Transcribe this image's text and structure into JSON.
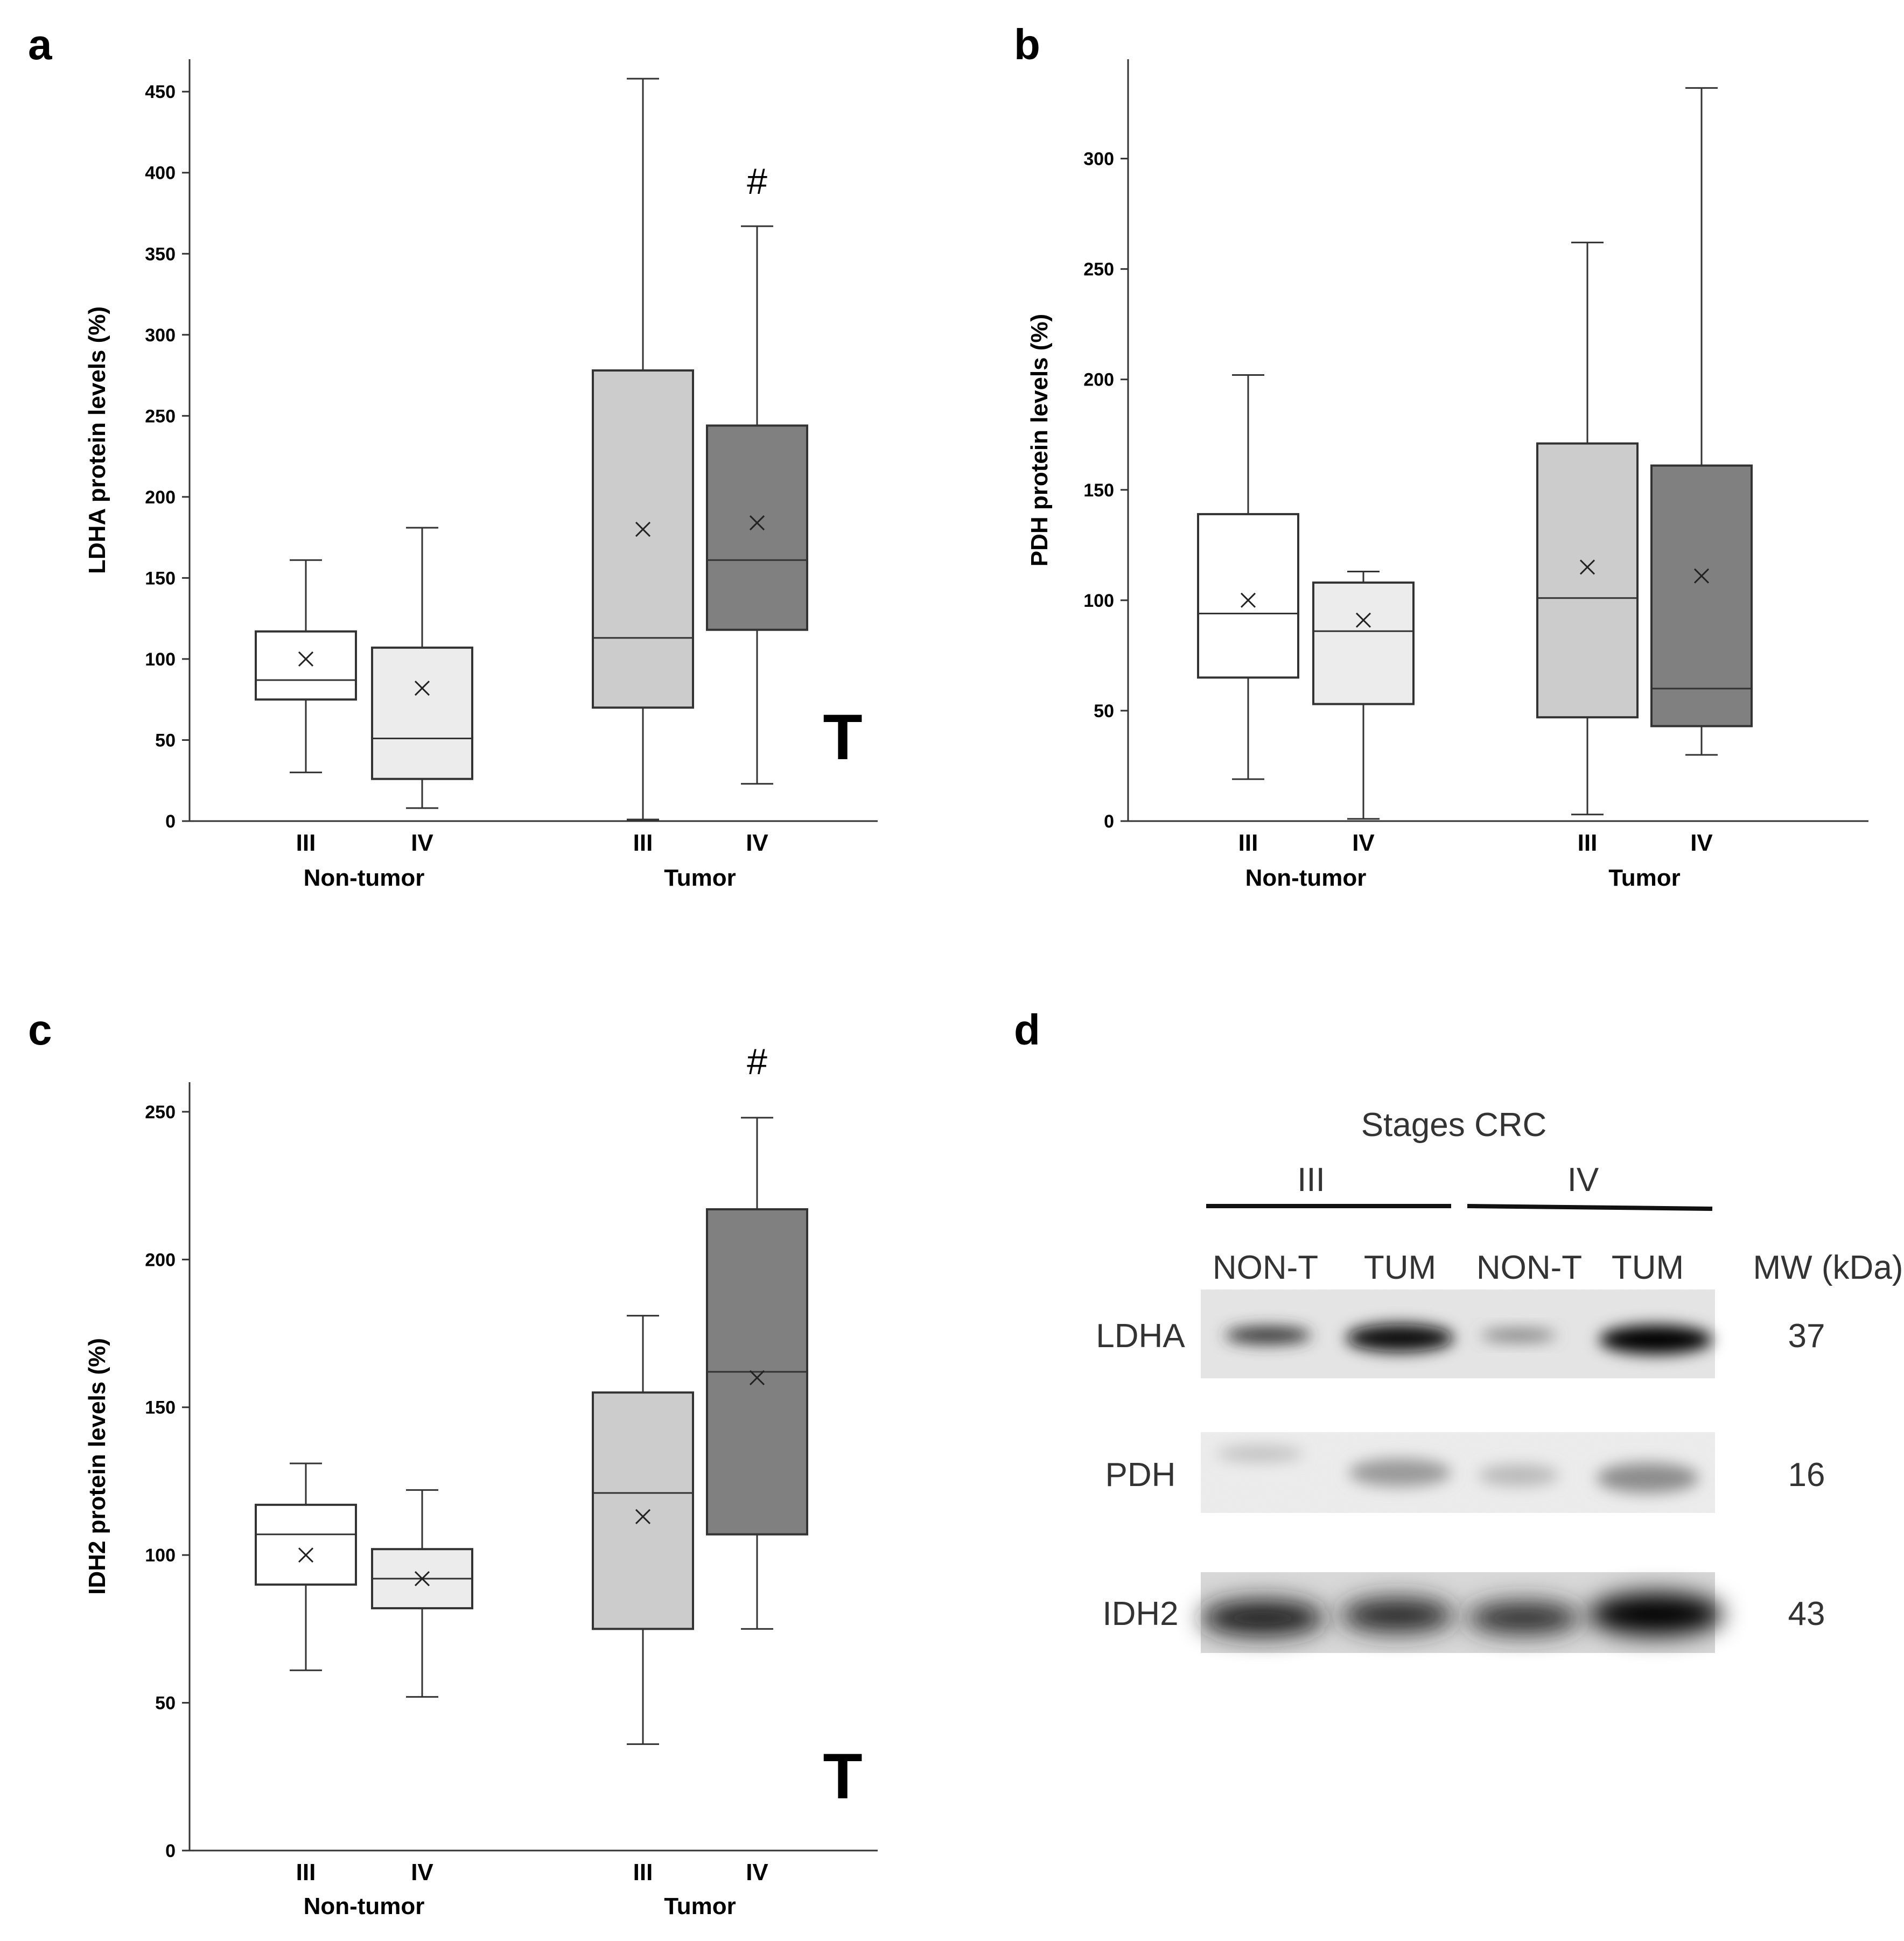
{
  "panels": {
    "a": "a",
    "b": "b",
    "c": "c",
    "d": "d"
  },
  "chart_data": [
    {
      "panel": "a",
      "type": "boxplot",
      "ylabel": "LDHA protein levels (%)",
      "ylim": [
        0,
        470
      ],
      "yticks": [
        0,
        50,
        100,
        150,
        200,
        250,
        300,
        350,
        400,
        450
      ],
      "groups": [
        "Non-tumor",
        "Tumor"
      ],
      "categories": [
        "III",
        "IV",
        "III",
        "IV"
      ],
      "boxes": [
        {
          "group": "Non-tumor",
          "stage": "III",
          "min": 30,
          "q1": 75,
          "median": 87,
          "q3": 117,
          "max": 161,
          "mean": 100,
          "color": "#ffffff"
        },
        {
          "group": "Non-tumor",
          "stage": "IV",
          "min": 8,
          "q1": 26,
          "median": 51,
          "q3": 107,
          "max": 181,
          "mean": 82,
          "color": "#ececec"
        },
        {
          "group": "Tumor",
          "stage": "III",
          "min": 1,
          "q1": 70,
          "median": 113,
          "q3": 278,
          "max": 458,
          "mean": 180,
          "color": "#cccccc"
        },
        {
          "group": "Tumor",
          "stage": "IV",
          "min": 23,
          "q1": 118,
          "median": 161,
          "q3": 244,
          "max": 367,
          "mean": 184,
          "color": "#808080"
        }
      ],
      "annotations": {
        "hash": "#",
        "hash_on": "Tumor IV",
        "T": "T"
      }
    },
    {
      "panel": "b",
      "type": "boxplot",
      "ylabel": "PDH protein levels (%)",
      "ylim": [
        0,
        345
      ],
      "yticks": [
        0,
        50,
        100,
        150,
        200,
        250,
        300
      ],
      "groups": [
        "Non-tumor",
        "Tumor"
      ],
      "categories": [
        "III",
        "IV",
        "III",
        "IV"
      ],
      "boxes": [
        {
          "group": "Non-tumor",
          "stage": "III",
          "min": 19,
          "q1": 65,
          "median": 94,
          "q3": 139,
          "max": 202,
          "mean": 100,
          "color": "#ffffff"
        },
        {
          "group": "Non-tumor",
          "stage": "IV",
          "min": 1,
          "q1": 53,
          "median": 86,
          "q3": 108,
          "max": 113,
          "mean": 91,
          "color": "#ececec"
        },
        {
          "group": "Tumor",
          "stage": "III",
          "min": 3,
          "q1": 47,
          "median": 101,
          "q3": 171,
          "max": 262,
          "mean": 115,
          "color": "#cccccc"
        },
        {
          "group": "Tumor",
          "stage": "IV",
          "min": 30,
          "q1": 43,
          "median": 60,
          "q3": 161,
          "max": 332,
          "mean": 111,
          "color": "#808080"
        }
      ]
    },
    {
      "panel": "c",
      "type": "boxplot",
      "ylabel": "IDH2 protein levels (%)",
      "ylim": [
        0,
        260
      ],
      "yticks": [
        0,
        50,
        100,
        150,
        200,
        250
      ],
      "groups": [
        "Non-tumor",
        "Tumor"
      ],
      "categories": [
        "III",
        "IV",
        "III",
        "IV"
      ],
      "boxes": [
        {
          "group": "Non-tumor",
          "stage": "III",
          "min": 61,
          "q1": 90,
          "median": 107,
          "q3": 117,
          "max": 131,
          "mean": 100,
          "color": "#ffffff"
        },
        {
          "group": "Non-tumor",
          "stage": "IV",
          "min": 52,
          "q1": 82,
          "median": 92,
          "q3": 102,
          "max": 122,
          "mean": 92,
          "color": "#ececec"
        },
        {
          "group": "Tumor",
          "stage": "III",
          "min": 36,
          "q1": 75,
          "median": 121,
          "q3": 155,
          "max": 181,
          "mean": 113,
          "color": "#cccccc"
        },
        {
          "group": "Tumor",
          "stage": "IV",
          "min": 75,
          "q1": 107,
          "median": 162,
          "q3": 217,
          "max": 248,
          "mean": 160,
          "color": "#808080"
        }
      ],
      "annotations": {
        "hash": "#",
        "hash_on": "Tumor IV",
        "T": "T"
      }
    }
  ],
  "blot": {
    "title": "Stages  CRC",
    "stage_labels": [
      "III",
      "IV"
    ],
    "lane_labels": [
      "NON-T",
      "TUM",
      "NON-T",
      "TUM"
    ],
    "mw_header": "MW (kDa)",
    "rows": [
      {
        "protein": "LDHA",
        "mw": "37"
      },
      {
        "protein": "PDH",
        "mw": "16"
      },
      {
        "protein": "IDH2",
        "mw": "43"
      }
    ]
  }
}
